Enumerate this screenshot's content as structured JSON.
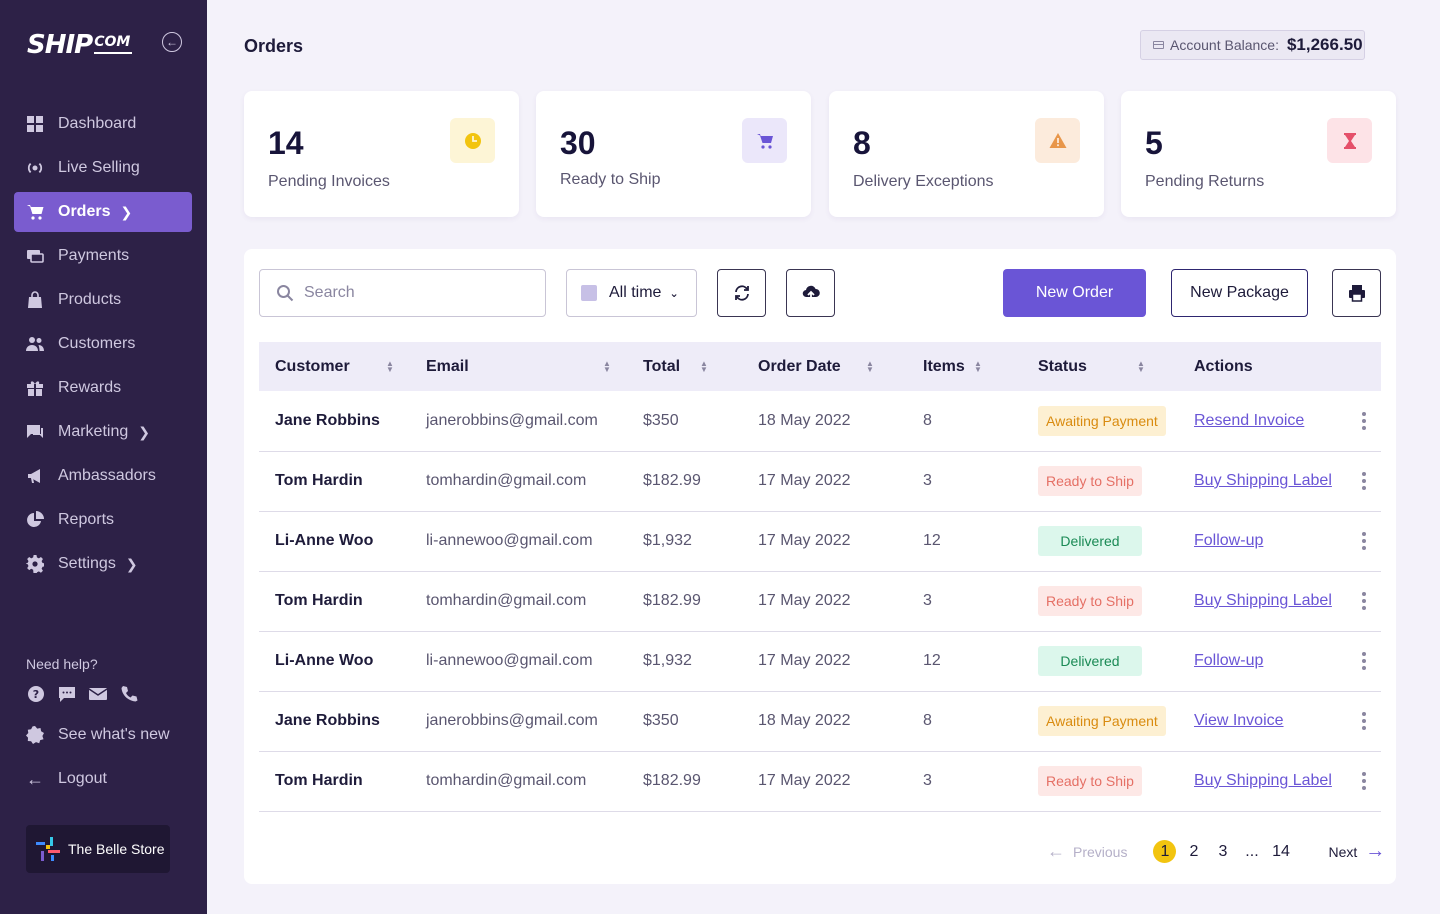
{
  "brand": {
    "name_main": "SHIP",
    "name_sub": "COM"
  },
  "sidebar": {
    "items": [
      {
        "label": "Dashboard",
        "icon": "dashboard-icon"
      },
      {
        "label": "Live Selling",
        "icon": "broadcast-icon"
      },
      {
        "label": "Orders",
        "icon": "cart-icon",
        "active": true
      },
      {
        "label": "Payments",
        "icon": "payments-icon"
      },
      {
        "label": "Products",
        "icon": "bag-icon"
      },
      {
        "label": "Customers",
        "icon": "users-icon"
      },
      {
        "label": "Rewards",
        "icon": "gift-icon"
      },
      {
        "label": "Marketing",
        "icon": "chat-icon"
      },
      {
        "label": "Ambassadors",
        "icon": "megaphone-icon"
      },
      {
        "label": "Reports",
        "icon": "pie-chart-icon"
      },
      {
        "label": "Settings",
        "icon": "gear-icon"
      }
    ],
    "help_label": "Need help?",
    "whats_new": "See what's new",
    "logout": "Logout",
    "store_name": "The Belle Store"
  },
  "header": {
    "title": "Orders",
    "balance_label": "Account Balance:",
    "balance_value": "$1,266.50"
  },
  "stats": [
    {
      "value": "14",
      "label": "Pending Invoices",
      "icon": "clock-icon",
      "color": "#f2c40f"
    },
    {
      "value": "30",
      "label": "Ready to Ship",
      "icon": "cart-icon",
      "color": "#6a55d6"
    },
    {
      "value": "8",
      "label": "Delivery Exceptions",
      "icon": "warning-icon",
      "color": "#e8964a"
    },
    {
      "value": "5",
      "label": "Pending Returns",
      "icon": "hourglass-icon",
      "color": "#e5506a"
    }
  ],
  "toolbar": {
    "search_placeholder": "Search",
    "date_range": "All time",
    "new_order": "New Order",
    "new_package": "New Package"
  },
  "table": {
    "columns": [
      "Customer",
      "Email",
      "Total",
      "Order Date",
      "Items",
      "Status",
      "Actions"
    ],
    "rows": [
      {
        "customer": "Jane Robbins",
        "email": "janerobbins@gmail.com",
        "total": "$350",
        "date": "18 May 2022",
        "items": "8",
        "status": "Awaiting Payment",
        "status_type": "awaiting",
        "action": "Resend Invoice"
      },
      {
        "customer": "Tom Hardin",
        "email": "tomhardin@gmail.com",
        "total": "$182.99",
        "date": "17 May 2022",
        "items": "3",
        "status": "Ready to Ship",
        "status_type": "ready",
        "action": "Buy Shipping Label"
      },
      {
        "customer": "Li-Anne Woo",
        "email": "li-annewoo@gmail.com",
        "total": "$1,932",
        "date": "17 May 2022",
        "items": "12",
        "status": "Delivered",
        "status_type": "delivered",
        "action": "Follow-up"
      },
      {
        "customer": "Tom Hardin",
        "email": "tomhardin@gmail.com",
        "total": "$182.99",
        "date": "17 May 2022",
        "items": "3",
        "status": "Ready to Ship",
        "status_type": "ready",
        "action": "Buy Shipping Label"
      },
      {
        "customer": "Li-Anne Woo",
        "email": "li-annewoo@gmail.com",
        "total": "$1,932",
        "date": "17 May 2022",
        "items": "12",
        "status": "Delivered",
        "status_type": "delivered",
        "action": "Follow-up"
      },
      {
        "customer": "Jane Robbins",
        "email": "janerobbins@gmail.com",
        "total": "$350",
        "date": "18 May 2022",
        "items": "8",
        "status": "Awaiting Payment",
        "status_type": "awaiting",
        "action": "View Invoice"
      },
      {
        "customer": "Tom Hardin",
        "email": "tomhardin@gmail.com",
        "total": "$182.99",
        "date": "17 May 2022",
        "items": "3",
        "status": "Ready to Ship",
        "status_type": "ready",
        "action": "Buy Shipping Label"
      }
    ]
  },
  "pagination": {
    "previous": "Previous",
    "next": "Next",
    "pages": [
      "1",
      "2",
      "3",
      "...",
      "14"
    ],
    "current": "1"
  }
}
